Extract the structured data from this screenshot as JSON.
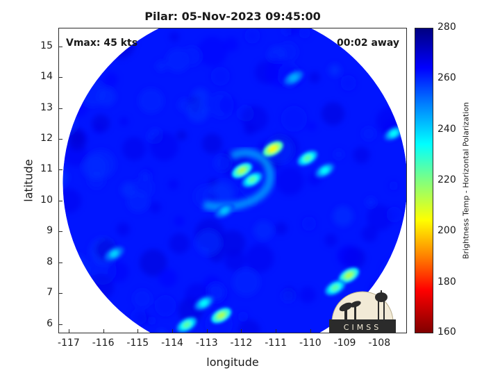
{
  "title": "Pilar: 05-Nov-2023 09:45:00",
  "vmax_label": "Vmax: 45 kts",
  "time_away": "00:02 away",
  "colorbar": {
    "label": "Brightness Temp - Horizontal Polarization",
    "ticks": [
      160,
      180,
      200,
      220,
      240,
      260,
      280
    ],
    "range": [
      160,
      280
    ],
    "colormap": "jet"
  },
  "logo_text": "CIMSS",
  "chart_data": {
    "type": "heatmap",
    "title": "Pilar: 05-Nov-2023 09:45:00",
    "xlabel": "longitude",
    "ylabel": "latitude",
    "xlim": [
      -117.3,
      -107.2
    ],
    "ylim": [
      5.7,
      15.6
    ],
    "xticks": [
      -117,
      -116,
      -115,
      -114,
      -113,
      -112,
      -111,
      -110,
      -109,
      -108
    ],
    "yticks": [
      6,
      7,
      8,
      9,
      10,
      11,
      12,
      13,
      14,
      15
    ],
    "swath_center": [
      -112.2,
      10.6
    ],
    "background_temp": 262,
    "features": [
      {
        "lon": -111.1,
        "lat": 11.7,
        "temp": 205
      },
      {
        "lon": -112.0,
        "lat": 11.0,
        "temp": 215
      },
      {
        "lon": -111.7,
        "lat": 10.7,
        "temp": 225
      },
      {
        "lon": -110.1,
        "lat": 11.4,
        "temp": 225
      },
      {
        "lon": -109.6,
        "lat": 11.0,
        "temp": 235
      },
      {
        "lon": -108.9,
        "lat": 7.6,
        "temp": 215
      },
      {
        "lon": -109.3,
        "lat": 7.2,
        "temp": 225
      },
      {
        "lon": -112.6,
        "lat": 6.3,
        "temp": 215
      },
      {
        "lon": -113.1,
        "lat": 6.7,
        "temp": 235
      },
      {
        "lon": -113.6,
        "lat": 6.0,
        "temp": 225
      },
      {
        "lon": -115.7,
        "lat": 8.3,
        "temp": 240
      },
      {
        "lon": -107.6,
        "lat": 12.2,
        "temp": 235
      },
      {
        "lon": -112.5,
        "lat": 9.7,
        "temp": 242
      },
      {
        "lon": -110.5,
        "lat": 14.0,
        "temp": 245
      }
    ]
  }
}
